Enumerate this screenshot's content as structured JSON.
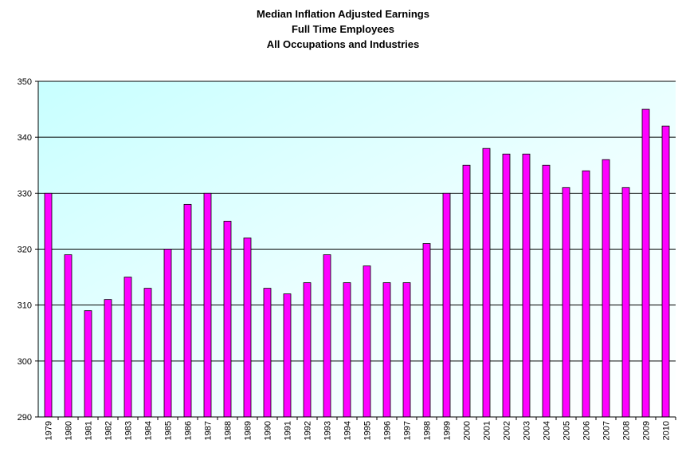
{
  "chart_data": {
    "type": "bar",
    "title_lines": [
      "Median Inflation Adjusted Earnings",
      "Full Time Employees",
      "All Occupations and Industries"
    ],
    "xlabel": "",
    "ylabel": "",
    "ylim": [
      290,
      350
    ],
    "yticks": [
      290,
      300,
      310,
      320,
      330,
      340,
      350
    ],
    "grid": true,
    "legend": "none",
    "colors": {
      "bar": "#ff00ff",
      "bar_outline": "#000000",
      "grid": "#000000"
    },
    "categories": [
      "1979",
      "1980",
      "1981",
      "1982",
      "1983",
      "1984",
      "1985",
      "1986",
      "1987",
      "1988",
      "1989",
      "1990",
      "1991",
      "1992",
      "1993",
      "1994",
      "1995",
      "1996",
      "1997",
      "1998",
      "1999",
      "2000",
      "2001",
      "2002",
      "2003",
      "2004",
      "2005",
      "2006",
      "2007",
      "2008",
      "2009",
      "2010"
    ],
    "values": [
      330,
      319,
      309,
      311,
      315,
      313,
      320,
      328,
      330,
      325,
      322,
      313,
      312,
      314,
      319,
      314,
      317,
      314,
      314,
      321,
      330,
      335,
      338,
      337,
      337,
      335,
      331,
      334,
      336,
      331,
      345,
      342
    ]
  }
}
